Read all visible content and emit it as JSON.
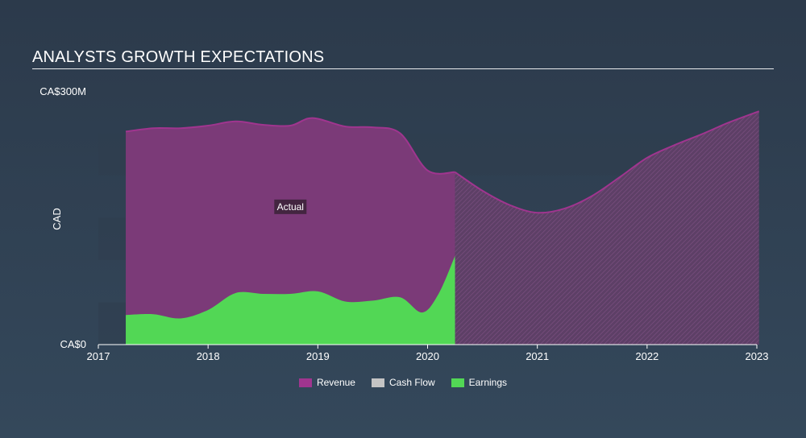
{
  "title": "ANALYSTS GROWTH EXPECTATIONS",
  "chart_data": {
    "type": "area",
    "ylabel": "CAD",
    "ytick_labels": [
      "CA$0",
      "CA$300M"
    ],
    "ylim": [
      0,
      300
    ],
    "xlim": [
      2017.0,
      2023.0
    ],
    "xtick_labels": [
      "2017",
      "2018",
      "2019",
      "2020",
      "2021",
      "2022",
      "2023"
    ],
    "annotation": "Actual",
    "actual_end": 2020.25,
    "series": [
      {
        "name": "Revenue",
        "color": "#a0358f",
        "x": [
          2017.25,
          2017.5,
          2017.75,
          2018.0,
          2018.25,
          2018.5,
          2018.75,
          2018.95,
          2019.25,
          2019.5,
          2019.75,
          2020.0,
          2020.25,
          2020.5,
          2020.75,
          2021.0,
          2021.25,
          2021.5,
          2021.75,
          2022.0,
          2022.25,
          2022.5,
          2022.75,
          2023.02
        ],
        "values": [
          252,
          256,
          256,
          259,
          264,
          260,
          259,
          268,
          258,
          257,
          250,
          206,
          204,
          182,
          165,
          156,
          161,
          176,
          198,
          221,
          236,
          249,
          263,
          276
        ]
      },
      {
        "name": "Cash Flow",
        "color": "#bfbfbf",
        "x": [],
        "values": []
      },
      {
        "name": "Earnings",
        "color": "#52d755",
        "x": [
          2017.25,
          2017.5,
          2017.75,
          2018.0,
          2018.25,
          2018.5,
          2018.75,
          2019.0,
          2019.25,
          2019.5,
          2019.75,
          2019.95,
          2020.1,
          2020.25
        ],
        "values": [
          35,
          36,
          31,
          41,
          61,
          60,
          60,
          63,
          51,
          52,
          56,
          38,
          60,
          105
        ]
      }
    ],
    "legend": [
      "Revenue",
      "Cash Flow",
      "Earnings"
    ]
  }
}
